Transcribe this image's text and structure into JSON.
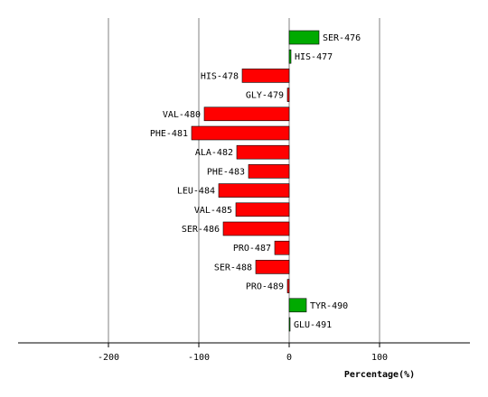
{
  "chart_data": {
    "type": "bar",
    "orientation": "horizontal",
    "categories": [
      "SER-476",
      "HIS-477",
      "HIS-478",
      "GLY-479",
      "VAL-480",
      "PHE-481",
      "ALA-482",
      "PHE-483",
      "LEU-484",
      "VAL-485",
      "SER-486",
      "PRO-487",
      "SER-488",
      "PRO-489",
      "TYR-490",
      "GLU-491"
    ],
    "values": [
      33,
      2,
      -52,
      -2,
      -94,
      -108,
      -58,
      -45,
      -78,
      -59,
      -73,
      -16,
      -37,
      -2,
      19,
      1
    ],
    "xlabel": "Percentage(%)",
    "ylabel": "",
    "title": "",
    "xlim": [
      -300,
      200
    ],
    "xticks": [
      -200,
      -100,
      0,
      100
    ],
    "xtick_labels": [
      "-200",
      "-100",
      "0",
      "100"
    ],
    "grid": true,
    "colors": {
      "positive": "#00aa00",
      "negative": "#ff0000",
      "grid": "#808080",
      "axis": "#000000"
    }
  }
}
